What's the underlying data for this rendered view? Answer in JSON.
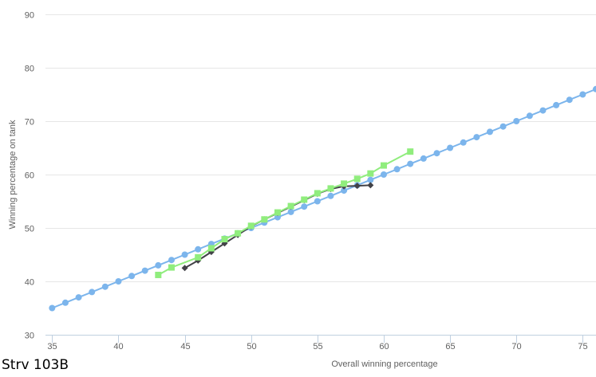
{
  "chart_data": {
    "type": "line",
    "title": "Strv 103B",
    "xlabel": "Overall winning percentage",
    "ylabel": "Winning percentage on tank",
    "xlim": [
      34.5,
      76
    ],
    "ylim": [
      30,
      90
    ],
    "xticks": [
      "35",
      "40",
      "45",
      "50",
      "55",
      "60",
      "65",
      "70",
      "75"
    ],
    "yticks": [
      "30",
      "40",
      "50",
      "60",
      "70",
      "80",
      "90"
    ],
    "grid": "horizontal",
    "legend": "none",
    "series": [
      {
        "color": "#7cb5ec",
        "marker": "circle",
        "x": [
          35,
          36,
          37,
          38,
          39,
          40,
          41,
          42,
          43,
          44,
          45,
          46,
          47,
          48,
          49,
          50,
          51,
          52,
          53,
          54,
          55,
          56,
          57,
          58,
          59,
          60,
          61,
          62,
          63,
          64,
          65,
          66,
          67,
          68,
          69,
          70,
          71,
          72,
          73,
          74,
          75,
          76
        ],
        "y": [
          35,
          36,
          37,
          38,
          39,
          40,
          41,
          42,
          43,
          44,
          45,
          46,
          47,
          48,
          49,
          50,
          51,
          52,
          53,
          54,
          55,
          56,
          57,
          58,
          59,
          60,
          61,
          62,
          63,
          64,
          65,
          66,
          67,
          68,
          69,
          70,
          71,
          72,
          73,
          74,
          75,
          76
        ]
      },
      {
        "color": "#434348",
        "marker": "diamond",
        "x": [
          45,
          46,
          47,
          48,
          49,
          50,
          51,
          52,
          53,
          54,
          55,
          56,
          57,
          58,
          59
        ],
        "y": [
          42.5,
          43.9,
          45.5,
          47.1,
          48.7,
          50.3,
          51.6,
          52.8,
          54.0,
          55.2,
          56.4,
          57.3,
          57.8,
          57.9,
          58.0
        ]
      },
      {
        "color": "#90ed7d",
        "marker": "square",
        "x": [
          43,
          44,
          46,
          47,
          48,
          49,
          50,
          51,
          52,
          53,
          54,
          55,
          56,
          57,
          58,
          59,
          60,
          62
        ],
        "y": [
          41.2,
          42.6,
          44.5,
          46.2,
          47.9,
          49.0,
          50.4,
          51.6,
          52.9,
          54.1,
          55.3,
          56.5,
          57.4,
          58.3,
          59.2,
          60.2,
          61.7,
          64.3
        ]
      }
    ]
  }
}
